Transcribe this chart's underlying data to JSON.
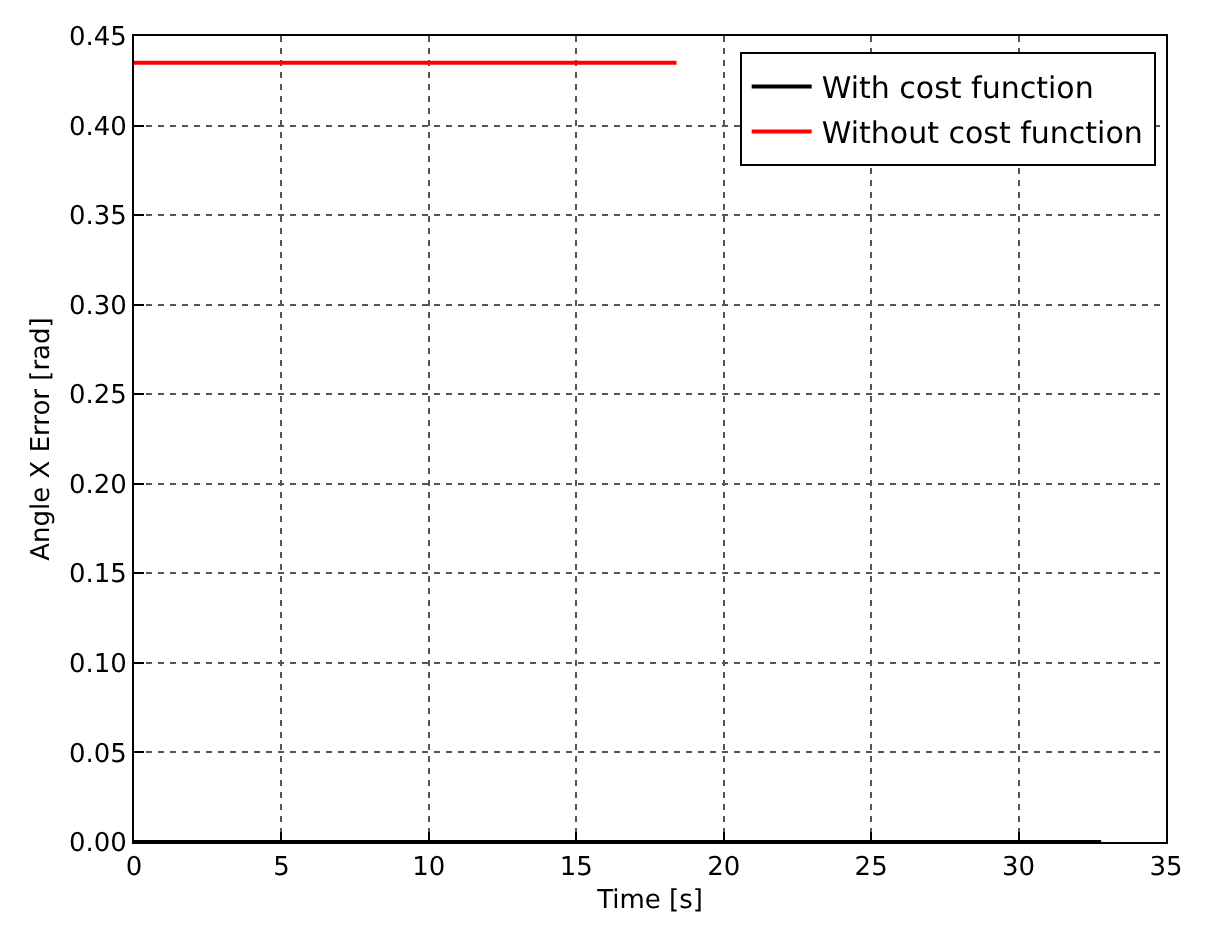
{
  "chart_data": {
    "type": "line",
    "xlabel": "Time [s]",
    "ylabel": "Angle X Error [rad]",
    "series": [
      {
        "name": "With cost function",
        "color": "#000000",
        "x": [
          0,
          32.8
        ],
        "values": [
          0,
          0
        ]
      },
      {
        "name": "Without cost function",
        "color": "#ff0000",
        "x": [
          0,
          18.4
        ],
        "values": [
          0.435,
          0.435
        ]
      }
    ],
    "xlim": [
      0,
      35
    ],
    "xticks": [
      0,
      5,
      10,
      15,
      20,
      25,
      30,
      35
    ],
    "ylim": [
      0,
      0.45
    ],
    "yticks": [
      {
        "value": 0,
        "label": "0.00"
      },
      {
        "value": 0.05,
        "label": "0.05"
      },
      {
        "value": 0.1,
        "label": "0.10"
      },
      {
        "value": 0.15,
        "label": "0.15"
      },
      {
        "value": 0.2,
        "label": "0.20"
      },
      {
        "value": 0.25,
        "label": "0.25"
      },
      {
        "value": 0.3,
        "label": "0.30"
      },
      {
        "value": 0.35,
        "label": "0.35"
      },
      {
        "value": 0.4,
        "label": "0.40"
      },
      {
        "value": 0.45,
        "label": "0.45"
      }
    ],
    "grid": true,
    "legend": "top right",
    "line_style": "solid",
    "marker": "none"
  }
}
